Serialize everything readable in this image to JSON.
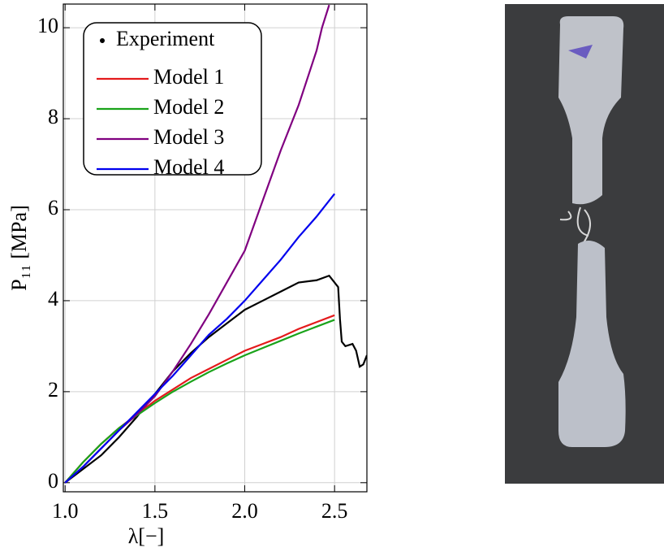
{
  "chart_data": {
    "type": "line",
    "xlabel": "λ[−]",
    "ylabel": "P₁₁ [MPa]",
    "xlim": [
      0.99,
      2.68
    ],
    "ylim": [
      -0.2,
      10.52
    ],
    "xticks": [
      {
        "value": 1.0,
        "label": "1.0"
      },
      1.5,
      {
        "value": 2.0,
        "label": "2.0"
      },
      2.5
    ],
    "yticks": [
      0,
      2,
      4,
      6,
      8,
      10
    ],
    "grid": true,
    "legend": "upper left",
    "series": [
      {
        "name": "Experiment",
        "color": "#000000",
        "x": [
          1.0,
          1.1,
          1.2,
          1.3,
          1.4,
          1.5,
          1.6,
          1.7,
          1.8,
          1.9,
          2.0,
          2.1,
          2.2,
          2.3,
          2.4,
          2.47,
          2.5,
          2.52,
          2.53,
          2.54,
          2.56,
          2.6,
          2.62,
          2.64,
          2.66,
          2.68
        ],
        "values": [
          0,
          0.3,
          0.6,
          1.0,
          1.45,
          1.95,
          2.45,
          2.85,
          3.2,
          3.5,
          3.8,
          4.0,
          4.2,
          4.4,
          4.45,
          4.55,
          4.4,
          4.3,
          3.6,
          3.1,
          3.0,
          3.05,
          2.9,
          2.55,
          2.6,
          2.8
        ]
      },
      {
        "name": "Model 1",
        "color": "#e41a1c",
        "x": [
          1.0,
          1.1,
          1.2,
          1.3,
          1.4,
          1.5,
          1.6,
          1.7,
          1.8,
          1.9,
          2.0,
          2.1,
          2.2,
          2.3,
          2.4,
          2.5
        ],
        "values": [
          0,
          0.45,
          0.85,
          1.2,
          1.5,
          1.8,
          2.05,
          2.3,
          2.5,
          2.7,
          2.9,
          3.05,
          3.2,
          3.38,
          3.53,
          3.68
        ]
      },
      {
        "name": "Model 2",
        "color": "#1aa31a",
        "x": [
          1.0,
          1.1,
          1.2,
          1.3,
          1.4,
          1.5,
          1.6,
          1.7,
          1.8,
          1.9,
          2.0,
          2.1,
          2.2,
          2.3,
          2.4,
          2.5
        ],
        "values": [
          0,
          0.45,
          0.85,
          1.2,
          1.48,
          1.75,
          2.0,
          2.22,
          2.43,
          2.62,
          2.8,
          2.96,
          3.12,
          3.28,
          3.43,
          3.58
        ]
      },
      {
        "name": "Model 3",
        "color": "#800080",
        "x": [
          1.0,
          1.1,
          1.2,
          1.3,
          1.4,
          1.5,
          1.6,
          1.7,
          1.8,
          1.9,
          2.0,
          2.1,
          2.2,
          2.3,
          2.4,
          2.43,
          2.47
        ],
        "values": [
          0,
          0.35,
          0.75,
          1.15,
          1.5,
          1.9,
          2.45,
          3.05,
          3.7,
          4.4,
          5.1,
          6.2,
          7.3,
          8.3,
          9.5,
          10,
          10.5
        ]
      },
      {
        "name": "Model 4",
        "color": "#0000ee",
        "x": [
          1.0,
          1.1,
          1.2,
          1.3,
          1.4,
          1.5,
          1.6,
          1.7,
          1.8,
          1.9,
          2.0,
          2.1,
          2.2,
          2.3,
          2.4,
          2.5
        ],
        "values": [
          0,
          0.35,
          0.75,
          1.15,
          1.55,
          1.95,
          2.35,
          2.8,
          3.25,
          3.6,
          4.0,
          4.45,
          4.9,
          5.4,
          5.85,
          6.35
        ]
      }
    ]
  }
}
